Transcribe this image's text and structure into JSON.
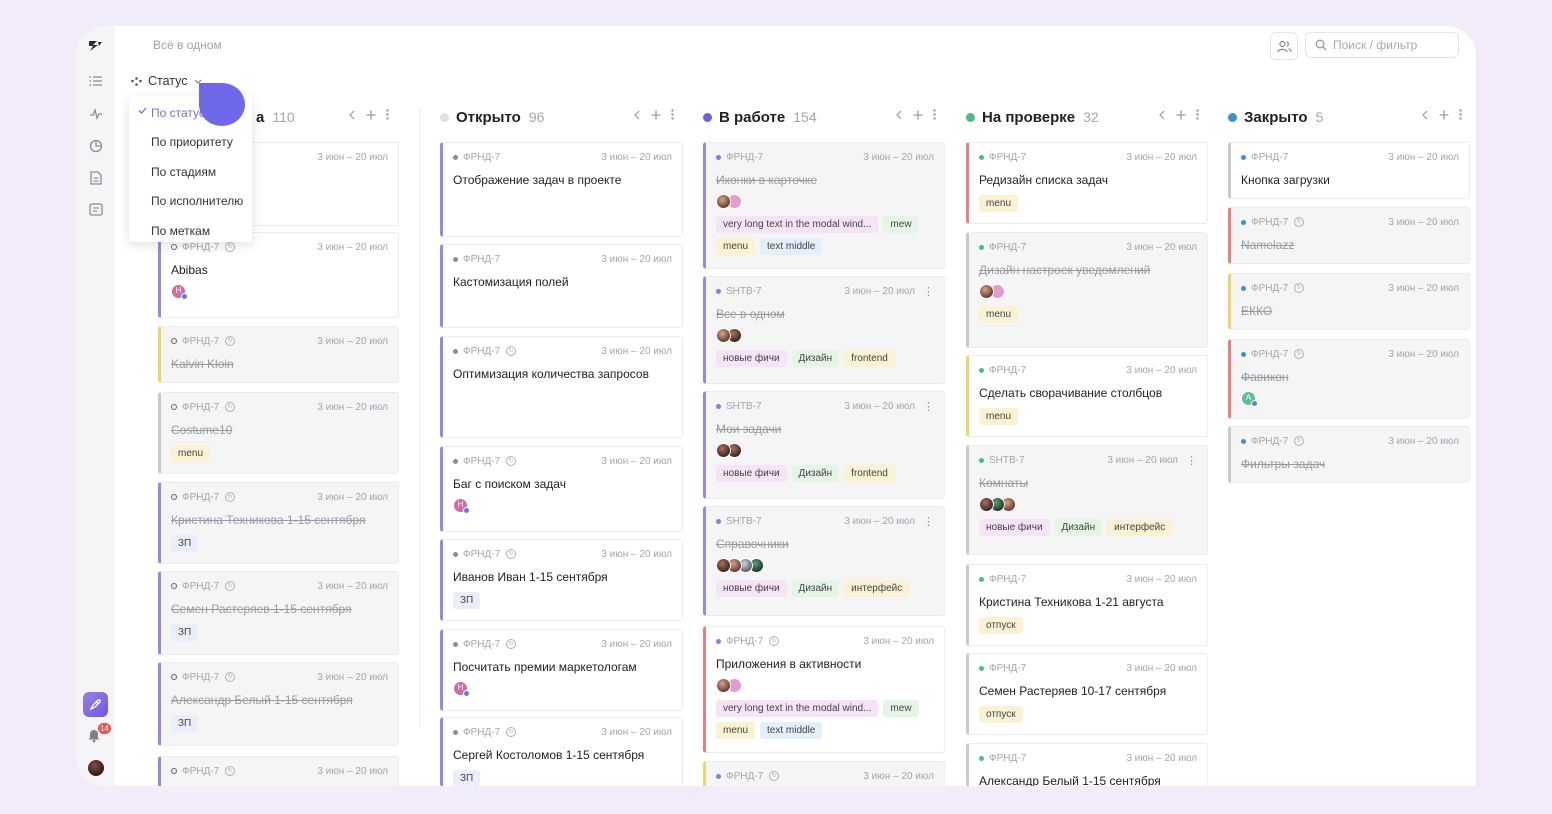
{
  "app": {
    "title": "Всё в одном"
  },
  "search": {
    "placeholder": "Поиск / фильтр"
  },
  "group": {
    "label": "Статус",
    "options": [
      "По статусу",
      "По приоритету",
      "По стадиям",
      "По исполнителю",
      "По меткам"
    ],
    "selected_index": 0
  },
  "notifications": {
    "count": "14"
  },
  "colors": {
    "accent": "#7b6ae8",
    "purple": "#9a86e6",
    "yellow": "#f2d36b",
    "red": "#ee7d7d",
    "gray": "#c9c9cf",
    "green": "#5cc48a",
    "blue": "#3b8ed8"
  },
  "columns": [
    {
      "title": "а",
      "count": "110",
      "dot": "none"
    },
    {
      "title": "Открыто",
      "count": "96",
      "dot": "#e0e0e4"
    },
    {
      "title": "В работе",
      "count": "154",
      "dot": "#6f5fe0"
    },
    {
      "title": "На проверке",
      "count": "32",
      "dot": "#49bd84"
    },
    {
      "title": "Закрыто",
      "count": "5",
      "dot": "#3b8ed8"
    }
  ],
  "cards": {
    "c0": [
      {
        "code": "",
        "date": "3 июн – 20 июл",
        "title": ""
      },
      {
        "code": "ФРНД-7",
        "date": "3 июн – 20 июл",
        "title": "Abibas",
        "avatar": "Н"
      },
      {
        "code": "ФРНД-7",
        "date": "3 июн – 20 июл",
        "title": "Kalvin Kloin"
      },
      {
        "code": "ФРНД-7",
        "date": "3 июн – 20 июл",
        "title": "Costume10",
        "tags": [
          "menu"
        ]
      },
      {
        "code": "ФРНД-7",
        "date": "3 июн – 20 июл",
        "title": "Кристина Техникова 1-15 сентября",
        "tags": [
          "ЗП"
        ]
      },
      {
        "code": "ФРНД-7",
        "date": "3 июн – 20 июл",
        "title": "Семен Растеряев 1-15 сентября",
        "tags": [
          "ЗП"
        ]
      },
      {
        "code": "ФРНД-7",
        "date": "3 июн – 20 июл",
        "title": "Александр Белый 1-15 сентября",
        "tags": [
          "ЗП"
        ]
      },
      {
        "code": "ФРНД-7",
        "date": "3 июн – 20 июл",
        "title": ""
      }
    ],
    "c1": [
      {
        "code": "ФРНД-7",
        "date": "3 июн – 20 июл",
        "title": "Отображение задач в проекте"
      },
      {
        "code": "ФРНД-7",
        "date": "3 июн – 20 июл",
        "title": "Кастомизация полей"
      },
      {
        "code": "ФРНД-7",
        "date": "3 июн – 20 июл",
        "title": "Оптимизация количества запросов"
      },
      {
        "code": "ФРНД-7",
        "date": "3 июн – 20 июл",
        "title": "Баг с поиском задач",
        "avatar": "Н"
      },
      {
        "code": "ФРНД-7",
        "date": "3 июн – 20 июл",
        "title": "Иванов Иван 1-15 сентября",
        "tags": [
          "ЗП"
        ]
      },
      {
        "code": "ФРНД-7",
        "date": "3 июн – 20 июл",
        "title": "Посчитать премии маркетологам",
        "avatar": "Н"
      },
      {
        "code": "ФРНД-7",
        "date": "3 июн – 20 июл",
        "title": "Сергей Костоломов 1-15 сентября",
        "tags": [
          "ЗП"
        ]
      }
    ],
    "c2": [
      {
        "code": "ФРНД-7",
        "date": "3 июн – 20 июл",
        "title": "Иконки в карточке",
        "tags": [
          "very long text in the modal wind...",
          "mew",
          "menu",
          "text middle"
        ]
      },
      {
        "code": "SHTB-7",
        "date": "3 июн – 20 июл",
        "title": "Все в одном",
        "tags": [
          "новые фичи",
          "Дизайн",
          "frontend"
        ]
      },
      {
        "code": "SHTB-7",
        "date": "3 июн – 20 июл",
        "title": "Мои задачи",
        "tags": [
          "новые фичи",
          "Дизайн",
          "frontend"
        ]
      },
      {
        "code": "SHTB-7",
        "date": "3 июн – 20 июл",
        "title": "Справочники",
        "tags": [
          "новые фичи",
          "Дизайн",
          "интерфейс"
        ]
      },
      {
        "code": "ФРНД-7",
        "date": "3 июн – 20 июл",
        "title": "Приложения в активности",
        "tags": [
          "very long text in the modal wind...",
          "mew",
          "menu",
          "text middle"
        ]
      },
      {
        "code": "ФРНД-7",
        "date": "3 июн – 20 июл",
        "title": ""
      }
    ],
    "c3": [
      {
        "code": "ФРНД-7",
        "date": "3 июн – 20 июл",
        "title": "Редизайн списка задач",
        "tags": [
          "menu"
        ]
      },
      {
        "code": "ФРНД-7",
        "date": "3 июн – 20 июл",
        "title": "Дизайн настроек уведомлений",
        "tags": [
          "menu"
        ]
      },
      {
        "code": "ФРНД-7",
        "date": "3 июн – 20 июл",
        "title": "Сделать сворачивание столбцов",
        "tags": [
          "menu"
        ]
      },
      {
        "code": "SHTB-7",
        "date": "3 июн – 20 июл",
        "title": "Комнаты",
        "tags": [
          "новые фичи",
          "Дизайн",
          "интерфейс"
        ]
      },
      {
        "code": "ФРНД-7",
        "date": "3 июн – 20 июл",
        "title": "Кристина Техникова 1-21 августа",
        "tags": [
          "отпуск"
        ]
      },
      {
        "code": "ФРНД-7",
        "date": "3 июн – 20 июл",
        "title": "Семен Растеряев 10-17 сентября",
        "tags": [
          "отпуск"
        ]
      },
      {
        "code": "ФРНД-7",
        "date": "3 июн – 20 июл",
        "title": "Александр Белый 1-15 сентября"
      }
    ],
    "c4": [
      {
        "code": "ФРНД-7",
        "date": "3 июн – 20 июл",
        "title": "Кнопка загрузки"
      },
      {
        "code": "ФРНД-7",
        "date": "3 июн – 20 июл",
        "title": "Namelazz"
      },
      {
        "code": "ФРНД-7",
        "date": "3 июн – 20 июл",
        "title": "ЕККО"
      },
      {
        "code": "ФРНД-7",
        "date": "3 июн – 20 июл",
        "title": "Фавикон",
        "avatar": "A"
      },
      {
        "code": "ФРНД-7",
        "date": "3 июн – 20 июл",
        "title": "Фильтры задач"
      }
    ]
  }
}
